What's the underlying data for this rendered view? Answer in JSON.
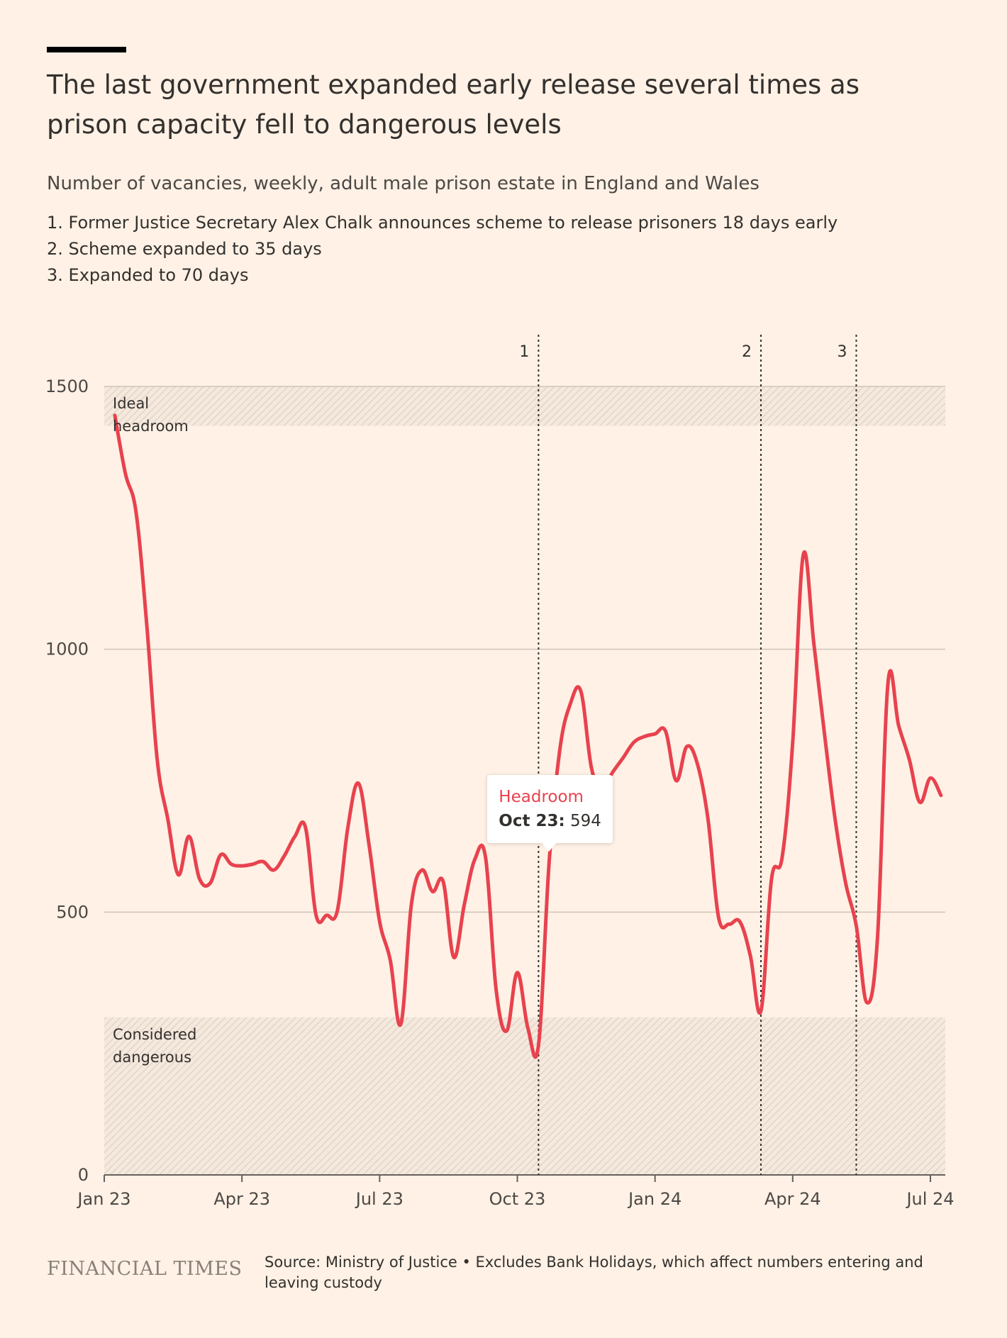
{
  "chart_data": {
    "type": "line",
    "title": "The last government expanded early release several times as prison capacity fell to dangerous levels",
    "subtitle": "Number of vacancies, weekly, adult male prison estate in England and Wales",
    "notes": [
      "1. Former Justice Secretary Alex Chalk announces scheme to release prisoners 18 days early",
      "2. Scheme expanded to 35 days",
      "3. Expanded to 70 days"
    ],
    "categories": [
      "Jan 23",
      null,
      null,
      null,
      null,
      null,
      null,
      null,
      null,
      null,
      null,
      null,
      null,
      "Apr 23",
      null,
      null,
      null,
      null,
      null,
      null,
      null,
      null,
      null,
      null,
      null,
      null,
      "Jul 23",
      null,
      null,
      null,
      null,
      null,
      null,
      null,
      null,
      null,
      null,
      null,
      null,
      "Oct 23",
      null,
      null,
      null,
      null,
      null,
      null,
      null,
      null,
      null,
      null,
      null,
      null,
      "Jan 24",
      null,
      null,
      null,
      null,
      null,
      null,
      null,
      null,
      null,
      null,
      null,
      null,
      "Apr 24",
      null,
      null,
      null,
      null,
      null,
      null,
      null,
      null,
      null,
      null,
      null,
      null,
      "Jul 24",
      null
    ],
    "series": [
      {
        "name": "Headroom",
        "color": "#e8424e",
        "values": [
          null,
          1445,
          1334,
          1261,
          1050,
          790,
          677,
          571,
          644,
          563,
          555,
          609,
          591,
          588,
          591,
          596,
          580,
          607,
          644,
          661,
          494,
          494,
          502,
          661,
          745,
          628,
          482,
          409,
          287,
          515,
          580,
          539,
          558,
          414,
          515,
          601,
          604,
          352,
          274,
          385,
          279,
          247,
          594,
          807,
          896,
          920,
          774,
          734,
          766,
          794,
          823,
          834,
          839,
          844,
          750,
          815,
          782,
          677,
          490,
          477,
          482,
          417,
          312,
          563,
          604,
          823,
          1180,
          1010,
          839,
          677,
          555,
          474,
          328,
          450,
          937,
          855,
          791,
          709,
          755,
          722
        ]
      }
    ],
    "ylim": [
      0,
      1500
    ],
    "yticks": [
      0,
      500,
      1000,
      1500
    ],
    "grid": true,
    "bands": [
      {
        "label": "Ideal headroom",
        "range": [
          1425,
          1500
        ]
      },
      {
        "label": "Considered dangerous",
        "range": [
          0,
          300
        ]
      }
    ],
    "events": [
      {
        "label": "1",
        "at": 41
      },
      {
        "label": "2",
        "at": 62
      },
      {
        "label": "3",
        "at": 71
      }
    ],
    "tooltip": {
      "label": "Oct 23:",
      "at": 42
    },
    "brand": "FINANCIAL TIMES",
    "source": "Source: Ministry of Justice • Excludes Bank Holidays, which affect numbers entering and leaving custody"
  }
}
